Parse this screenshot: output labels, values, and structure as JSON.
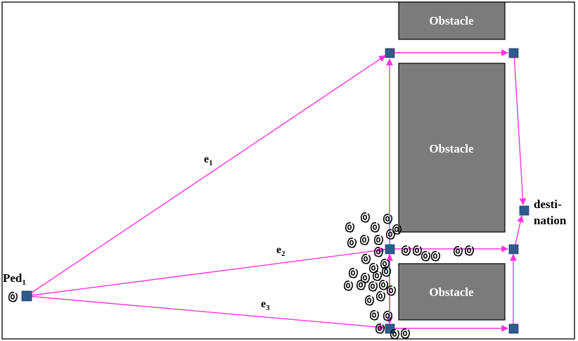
{
  "diagram": {
    "obstacles": [
      {
        "label": "Obstacle"
      },
      {
        "label": "Obstacle"
      },
      {
        "label": "Obstacle"
      }
    ],
    "pedestrian_label": "Ped",
    "pedestrian_subscript": "1",
    "edge_labels": [
      {
        "main": "e",
        "sub": "1"
      },
      {
        "main": "e",
        "sub": "2"
      },
      {
        "main": "e",
        "sub": "3"
      }
    ],
    "destination_label_line1": "desti-",
    "destination_label_line2": "nation",
    "colors": {
      "edge": "#ff33dd",
      "node": "#2f5a8c",
      "obstacle": "#7b7b7b"
    }
  }
}
